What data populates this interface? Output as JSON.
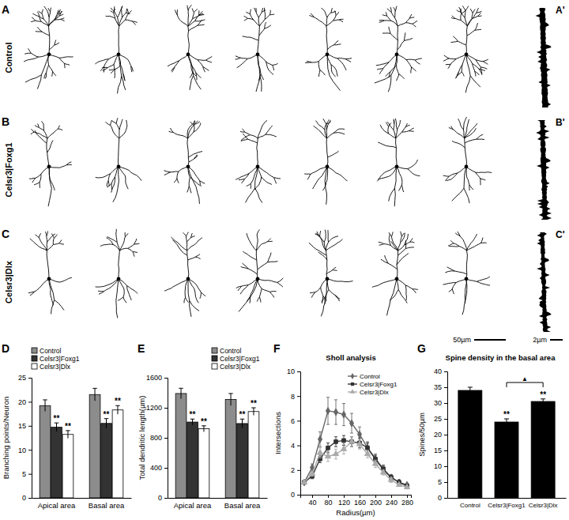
{
  "figure": {
    "panel_labels": [
      "A",
      "B",
      "C",
      "D",
      "E",
      "F",
      "G"
    ],
    "image_labels": [
      "A'",
      "B'",
      "C'"
    ],
    "row_labels": [
      "Control",
      "Celsr3|Foxg1",
      "Celsr3|Dlx"
    ],
    "scale_bars": [
      "50µm",
      "2µm"
    ]
  },
  "chart_data": [
    {
      "type": "bar",
      "y_label": "Branching points/Neuron",
      "categories": [
        "Apical area",
        "Basal area"
      ],
      "series": [
        {
          "name": "Control",
          "color": "#8c8c8c",
          "values": [
            19.2,
            21.5
          ],
          "errors": [
            1.2,
            1.3
          ]
        },
        {
          "name": "Celsr3|Foxg1",
          "color": "#333333",
          "values": [
            14.7,
            15.5
          ],
          "errors": [
            0.9,
            1.0
          ]
        },
        {
          "name": "Celsr3|Dlx",
          "color": "#ffffff",
          "values": [
            13.2,
            18.3
          ],
          "errors": [
            0.8,
            0.9
          ]
        }
      ],
      "ylim": [
        0,
        25
      ],
      "yticks": [
        0,
        5,
        10,
        15,
        20,
        25
      ],
      "legend": "top-left",
      "grid": false,
      "annotations": [
        {
          "text": "**",
          "series": 1,
          "category": 0
        },
        {
          "text": "**",
          "series": 2,
          "category": 0
        },
        {
          "text": "**",
          "series": 1,
          "category": 1
        },
        {
          "text": "**",
          "series": 2,
          "category": 1
        }
      ]
    },
    {
      "type": "bar",
      "y_label": "Total dendritic length(µm)",
      "categories": [
        "Apical area",
        "Basal area"
      ],
      "series": [
        {
          "name": "Control",
          "color": "#8c8c8c",
          "values": [
            1390,
            1310
          ],
          "errors": [
            70,
            80
          ]
        },
        {
          "name": "Celsr3|Foxg1",
          "color": "#333333",
          "values": [
            1010,
            990
          ],
          "errors": [
            40,
            60
          ]
        },
        {
          "name": "Celsr3|Dlx",
          "color": "#ffffff",
          "values": [
            920,
            1150
          ],
          "errors": [
            40,
            50
          ]
        }
      ],
      "ylim": [
        0,
        1600
      ],
      "yticks": [
        0,
        400,
        800,
        1200,
        1600
      ],
      "legend": "top-right",
      "grid": false,
      "annotations": [
        {
          "text": "**",
          "series": 1,
          "category": 0
        },
        {
          "text": "**",
          "series": 2,
          "category": 0
        },
        {
          "text": "**",
          "series": 1,
          "category": 1
        },
        {
          "text": "**",
          "series": 2,
          "category": 1
        }
      ]
    },
    {
      "type": "line",
      "title": "Sholl analysis",
      "x_label": "Radius(µm)",
      "y_label": "Intersections",
      "x": [
        20,
        40,
        60,
        80,
        100,
        120,
        140,
        160,
        180,
        200,
        220,
        240,
        260,
        280
      ],
      "series": [
        {
          "name": "Control",
          "color": "#666666",
          "marker": "diamond",
          "line_style": "solid",
          "values": [
            1.0,
            2.2,
            4.5,
            6.8,
            6.7,
            6.5,
            5.8,
            4.9,
            3.8,
            2.9,
            2.0,
            1.4,
            1.0,
            0.8
          ],
          "errors": [
            0.1,
            0.3,
            0.6,
            1.1,
            1.0,
            0.9,
            0.8,
            0.6,
            0.5,
            0.4,
            0.3,
            0.2,
            0.2,
            0.1
          ]
        },
        {
          "name": "Celsr3|Foxg1",
          "color": "#333333",
          "marker": "square",
          "line_style": "solid",
          "values": [
            1.0,
            1.5,
            2.9,
            3.8,
            4.3,
            4.4,
            4.3,
            4.2,
            3.8,
            2.9,
            2.1,
            1.4,
            1.0,
            0.7
          ],
          "errors": [
            0.1,
            0.2,
            0.3,
            0.4,
            0.4,
            0.4,
            0.4,
            0.4,
            0.4,
            0.3,
            0.3,
            0.2,
            0.2,
            0.1
          ]
        },
        {
          "name": "Celsr3|Dlx",
          "color": "#aaaaaa",
          "marker": "triangle",
          "line_style": "solid",
          "values": [
            1.0,
            1.7,
            3.4,
            3.1,
            3.3,
            3.7,
            4.3,
            4.1,
            3.3,
            2.5,
            1.8,
            1.2,
            0.8,
            0.6
          ],
          "errors": [
            0.1,
            0.2,
            0.4,
            0.4,
            0.4,
            0.4,
            0.4,
            0.4,
            0.3,
            0.3,
            0.2,
            0.2,
            0.1,
            0.1
          ]
        }
      ],
      "xlim": [
        10,
        290
      ],
      "xticks": [
        40,
        80,
        120,
        160,
        200,
        240,
        280
      ],
      "ylim": [
        0,
        10
      ],
      "yticks": [
        0,
        2,
        4,
        6,
        8,
        10
      ],
      "legend": "top-right",
      "grid": false
    },
    {
      "type": "bar",
      "title": "Spine density in the basal area",
      "y_label": "Spines/50µm",
      "categories": [
        "Control",
        "Celsr3|Foxg1",
        "Celsr3|Dlx"
      ],
      "values": [
        34,
        24,
        30.5
      ],
      "errors": [
        1.0,
        1.0,
        0.8
      ],
      "color": "#000000",
      "ylim": [
        0,
        40
      ],
      "yticks": [
        0,
        5,
        10,
        15,
        20,
        25,
        30,
        35,
        40
      ],
      "grid": false,
      "annotations": [
        {
          "text": "**",
          "category": 1
        },
        {
          "text": "**",
          "category": 2
        },
        {
          "text": "▲",
          "categories": [
            1,
            2
          ]
        }
      ]
    }
  ]
}
